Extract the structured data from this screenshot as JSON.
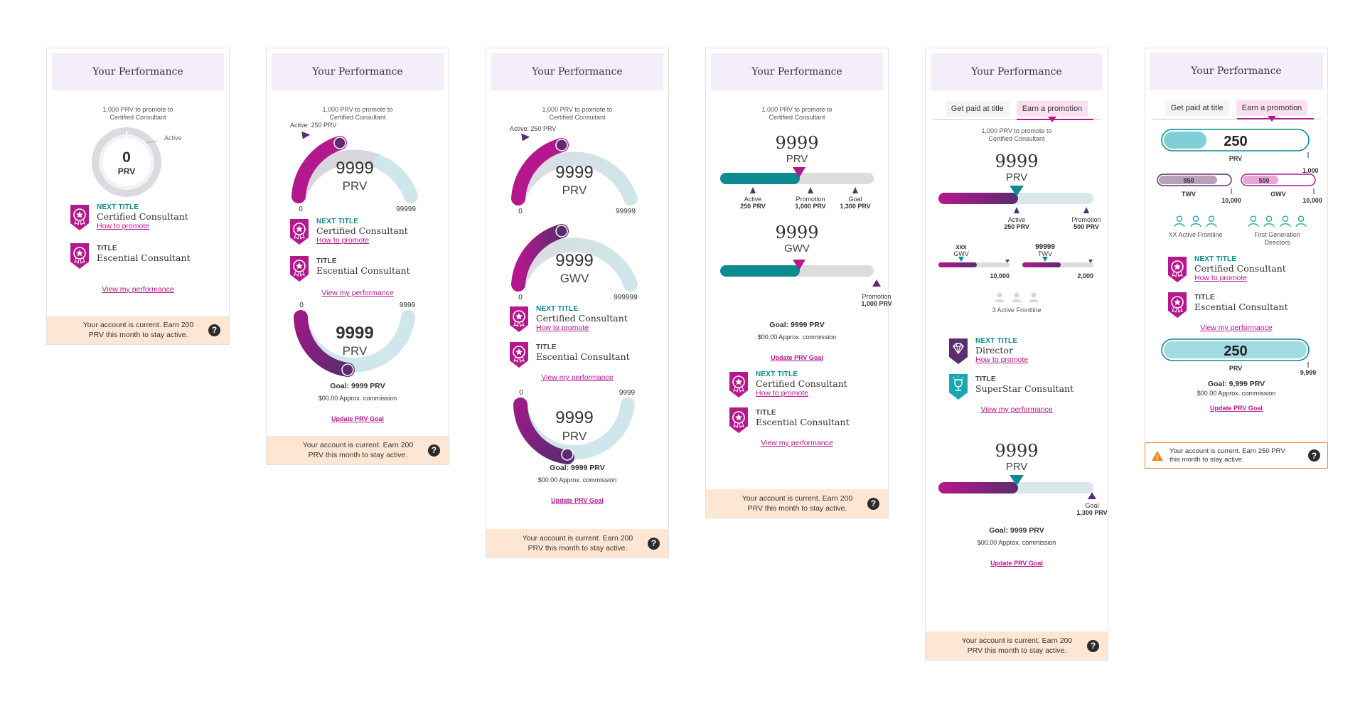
{
  "common": {
    "header_title": "Your Performance",
    "promote_caption_1": "1,000 PRV to promote to",
    "promote_caption_2": "Certified Consultant",
    "footer_line1": "Your account is current. Earn 200",
    "footer_line2": "PRV this month to stay active.",
    "help_glyph": "?",
    "view_performance": "View my performance",
    "update_goal": "Update PRV Goal",
    "goal_text": "Goal: 9999 PRV",
    "approx_text": "$00.00 Approx. commission",
    "next_title_label": "NEXT TITLE",
    "title_label": "TITLE",
    "how_to_promote": "How to promote",
    "next_title_name": "Certified Consultant",
    "title_name": "Escential Consultant"
  },
  "card1": {
    "value": "0",
    "unit": "PRV",
    "active_label": "Active",
    "progress": 0
  },
  "card2": {
    "active_marker": "Active: 250 PRV",
    "gauge1_value": "9999",
    "gauge1_unit": "PRV",
    "gauge1_min": "0",
    "gauge1_max": "99999",
    "gauge2_min": "0",
    "gauge2_max": "9999",
    "gauge2_value": "9999",
    "gauge2_unit": "PRV"
  },
  "card3": {
    "active_marker": "Active: 250 PRV",
    "gauge1_value": "9999",
    "gauge1_unit": "PRV",
    "gauge1_min": "0",
    "gauge1_max": "99999",
    "gauge2_value": "9999",
    "gauge2_unit": "GWV",
    "gauge2_min": "0",
    "gauge2_max": "999999",
    "gauge3_min": "0",
    "gauge3_max": "9999",
    "gauge3_value": "9999",
    "gauge3_unit": "PRV"
  },
  "card4": {
    "prv_value": "9999",
    "prv_unit": "PRV",
    "gwv_value": "9999",
    "gwv_unit": "GWV",
    "m_active": "Active",
    "m_active_v": "250 PRV",
    "m_promotion": "Promotion",
    "m_promotion_v": "1,000 PRV",
    "m_goal": "Goal",
    "m_goal_v": "1,300 PRV",
    "m2_promotion": "Promotion",
    "m2_promotion_v": "1,000 PRV"
  },
  "card5": {
    "tab1": "Get paid at title",
    "tab2": "Earn a promotion",
    "caption_1": "1,000 PRV to promote to",
    "caption_2": "Certified Consultant",
    "value": "9999",
    "unit": "PRV",
    "m_active": "Active",
    "m_active_v": "250 PRV",
    "m_promotion": "Promotion",
    "m_promotion_v": "500 PRV",
    "gwv_top": "xxx",
    "gwv_label": "GWV",
    "gwv_max": "10,000",
    "twv_top": "99999",
    "twv_label": "TWV",
    "twv_max": "2,000",
    "frontline": "3 Active Frontline",
    "next_title_name": "Director",
    "title_name": "SuperStar Consultant",
    "value2": "9999",
    "unit2": "PRV",
    "m2_goal": "Goal",
    "m2_goal_v": "1,300 PRV"
  },
  "card6": {
    "tab1": "Get paid at title",
    "tab2": "Earn a promotion",
    "prv_value": "250",
    "prv_label": "PRV",
    "prv_max": "1,000",
    "twv_value": "850",
    "twv_label": "TWV",
    "twv_max": "10,000",
    "gwv_value": "550",
    "gwv_label": "GWV",
    "gwv_max": "10,000",
    "frontline": "XX Active Frontline",
    "first_gen_1": "First Generation",
    "first_gen_2": "Directors",
    "prv2_value": "250",
    "prv2_label": "PRV",
    "prv2_max": "9,999",
    "goal_text": "Goal: 9,999 PRV",
    "footer_line1": "Your account is current. Earn 250 PRV",
    "footer_line2": "this month to stay active.",
    "warning_glyph": "!"
  },
  "colors": {
    "magenta": "#b5178d",
    "purple": "#5b2c6f",
    "teal": "#0b8a8f",
    "light_teal": "#cfe6ea",
    "gray_track": "#d9d9d9",
    "header_bg": "#f3eef9",
    "footer_bg": "#fde7d4",
    "warning": "#f08a24"
  }
}
